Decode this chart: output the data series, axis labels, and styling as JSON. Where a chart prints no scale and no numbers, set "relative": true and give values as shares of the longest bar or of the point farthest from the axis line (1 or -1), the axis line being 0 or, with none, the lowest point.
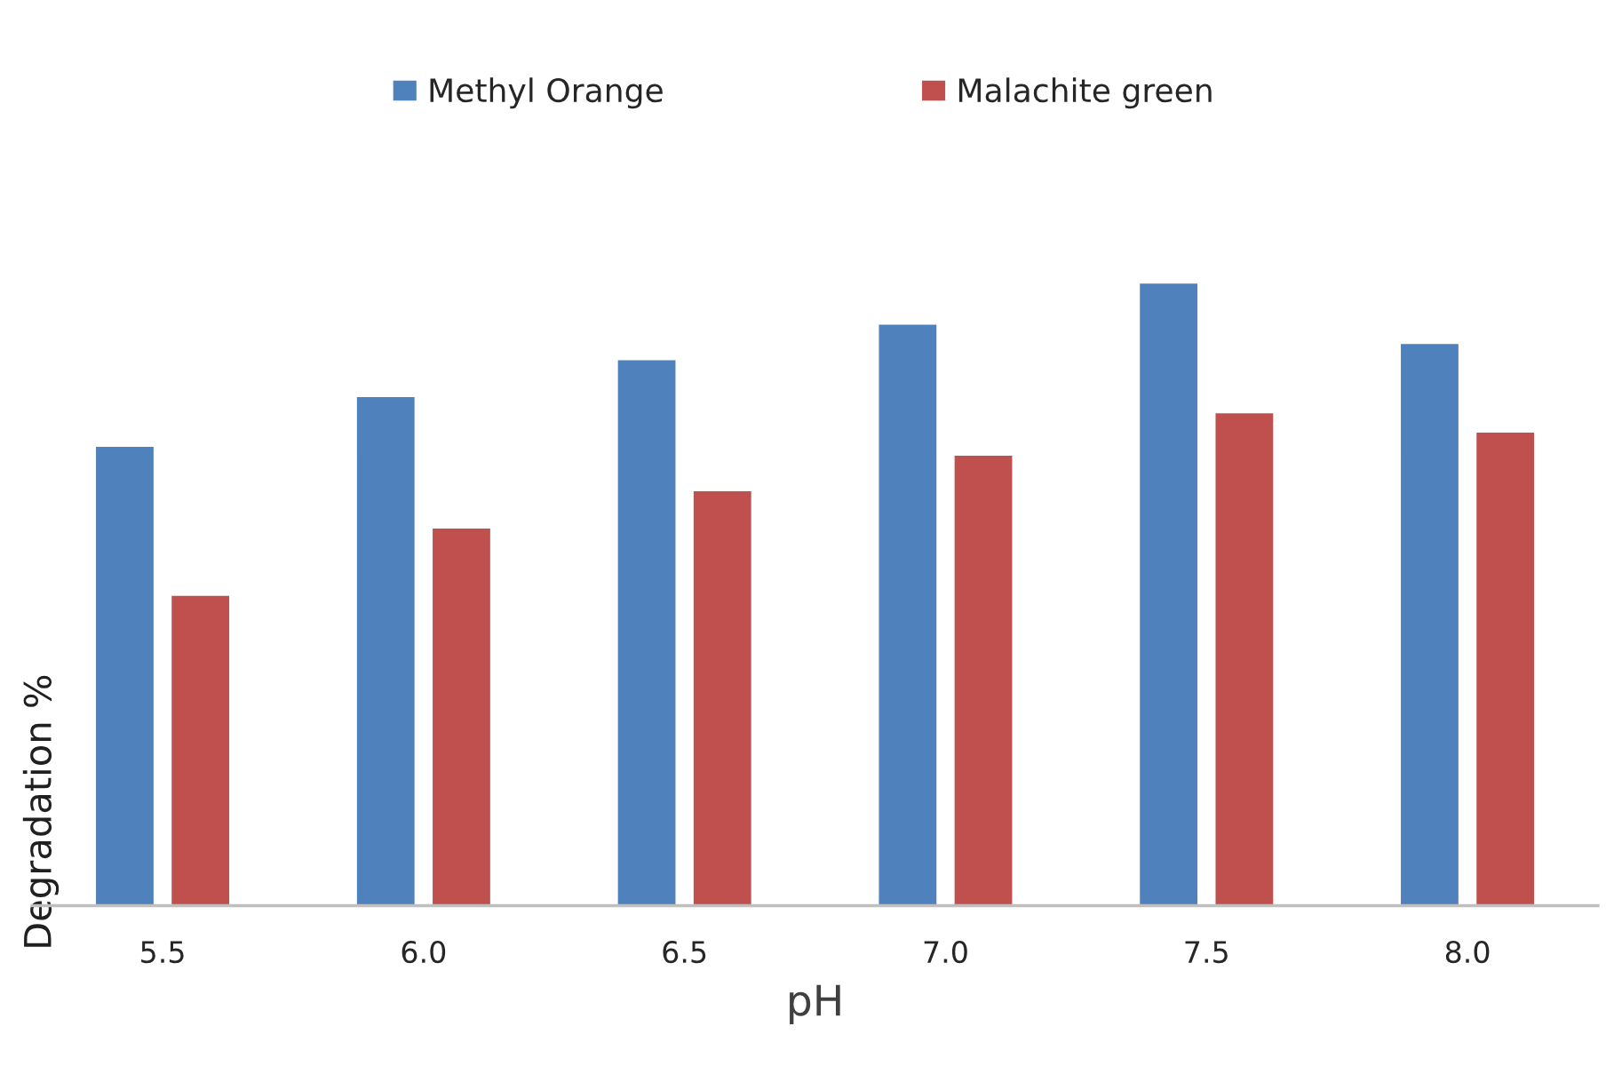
{
  "chart_data": {
    "type": "bar",
    "relative": true,
    "xlabel": "pH",
    "ylabel": "Degradation %",
    "categories": [
      "5.5",
      "6.0",
      "6.5",
      "7.0",
      "7.5",
      "8.0"
    ],
    "series": [
      {
        "name": "Methyl Orange",
        "color": "#4f81bd",
        "values": [
          0.738,
          0.818,
          0.877,
          0.934,
          1,
          0.903
        ]
      },
      {
        "name": "Malachite green",
        "color": "#c0504d",
        "values": [
          0.499,
          0.607,
          0.667,
          0.724,
          0.792,
          0.761
        ]
      }
    ],
    "legend": "top",
    "grid": false
  }
}
